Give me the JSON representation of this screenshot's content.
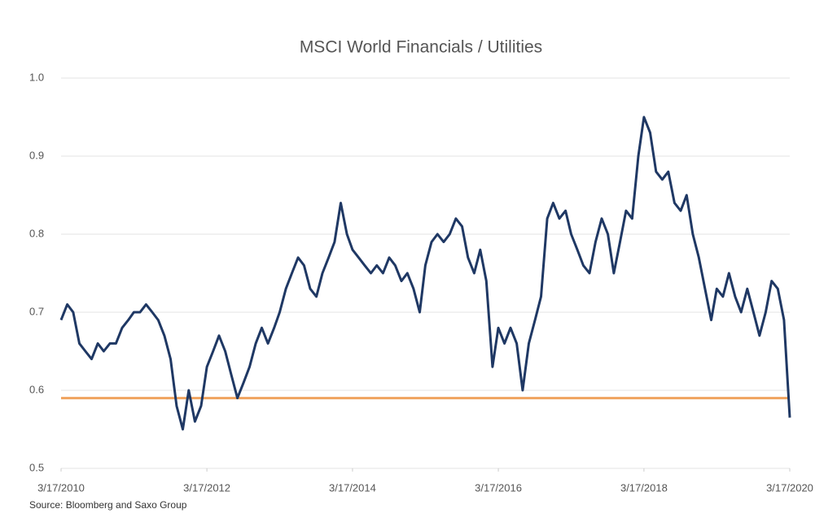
{
  "chart_data": {
    "type": "line",
    "title": "MSCI World Financials / Utilities",
    "source": "Source: Bloomberg and Saxo Group",
    "x": [
      "2010-03-17",
      "2010-04-17",
      "2010-05-17",
      "2010-06-17",
      "2010-07-17",
      "2010-08-17",
      "2010-09-17",
      "2010-10-17",
      "2010-11-17",
      "2010-12-17",
      "2011-01-17",
      "2011-02-17",
      "2011-03-17",
      "2011-04-17",
      "2011-05-17",
      "2011-06-17",
      "2011-07-17",
      "2011-08-17",
      "2011-09-17",
      "2011-10-17",
      "2011-11-17",
      "2011-12-17",
      "2012-01-17",
      "2012-02-17",
      "2012-03-17",
      "2012-04-17",
      "2012-05-17",
      "2012-06-17",
      "2012-07-17",
      "2012-08-17",
      "2012-09-17",
      "2012-10-17",
      "2012-11-17",
      "2012-12-17",
      "2013-01-17",
      "2013-02-17",
      "2013-03-17",
      "2013-04-17",
      "2013-05-17",
      "2013-06-17",
      "2013-07-17",
      "2013-08-17",
      "2013-09-17",
      "2013-10-17",
      "2013-11-17",
      "2013-12-17",
      "2014-01-17",
      "2014-02-17",
      "2014-03-17",
      "2014-04-17",
      "2014-05-17",
      "2014-06-17",
      "2014-07-17",
      "2014-08-17",
      "2014-09-17",
      "2014-10-17",
      "2014-11-17",
      "2014-12-17",
      "2015-01-17",
      "2015-02-17",
      "2015-03-17",
      "2015-04-17",
      "2015-05-17",
      "2015-06-17",
      "2015-07-17",
      "2015-08-17",
      "2015-09-17",
      "2015-10-17",
      "2015-11-17",
      "2015-12-17",
      "2016-01-17",
      "2016-02-17",
      "2016-03-17",
      "2016-04-17",
      "2016-05-17",
      "2016-06-17",
      "2016-07-17",
      "2016-08-17",
      "2016-09-17",
      "2016-10-17",
      "2016-11-17",
      "2016-12-17",
      "2017-01-17",
      "2017-02-17",
      "2017-03-17",
      "2017-04-17",
      "2017-05-17",
      "2017-06-17",
      "2017-07-17",
      "2017-08-17",
      "2017-09-17",
      "2017-10-17",
      "2017-11-17",
      "2017-12-17",
      "2018-01-17",
      "2018-02-17",
      "2018-03-17",
      "2018-04-17",
      "2018-05-17",
      "2018-06-17",
      "2018-07-17",
      "2018-08-17",
      "2018-09-17",
      "2018-10-17",
      "2018-11-17",
      "2018-12-17",
      "2019-01-17",
      "2019-02-17",
      "2019-03-17",
      "2019-04-17",
      "2019-05-17",
      "2019-06-17",
      "2019-07-17",
      "2019-08-17",
      "2019-09-17",
      "2019-10-17",
      "2019-11-17",
      "2019-12-17",
      "2020-01-17",
      "2020-02-17",
      "2020-03-17"
    ],
    "series": [
      {
        "name": "MSCI World Financials / Utilities",
        "color": "#1f3864",
        "values": [
          0.69,
          0.71,
          0.7,
          0.66,
          0.65,
          0.64,
          0.66,
          0.65,
          0.66,
          0.66,
          0.68,
          0.69,
          0.7,
          0.7,
          0.71,
          0.7,
          0.69,
          0.67,
          0.64,
          0.58,
          0.55,
          0.6,
          0.56,
          0.58,
          0.63,
          0.65,
          0.67,
          0.65,
          0.62,
          0.59,
          0.61,
          0.63,
          0.66,
          0.68,
          0.66,
          0.68,
          0.7,
          0.73,
          0.75,
          0.77,
          0.76,
          0.73,
          0.72,
          0.75,
          0.77,
          0.79,
          0.84,
          0.8,
          0.78,
          0.77,
          0.76,
          0.75,
          0.76,
          0.75,
          0.77,
          0.76,
          0.74,
          0.75,
          0.73,
          0.7,
          0.76,
          0.79,
          0.8,
          0.79,
          0.8,
          0.82,
          0.81,
          0.77,
          0.75,
          0.78,
          0.74,
          0.63,
          0.68,
          0.66,
          0.68,
          0.66,
          0.6,
          0.66,
          0.69,
          0.72,
          0.82,
          0.84,
          0.82,
          0.83,
          0.8,
          0.78,
          0.76,
          0.75,
          0.79,
          0.82,
          0.8,
          0.75,
          0.79,
          0.83,
          0.82,
          0.9,
          0.95,
          0.93,
          0.88,
          0.87,
          0.88,
          0.84,
          0.83,
          0.85,
          0.8,
          0.77,
          0.73,
          0.69,
          0.73,
          0.72,
          0.75,
          0.72,
          0.7,
          0.73,
          0.7,
          0.67,
          0.7,
          0.74,
          0.73,
          0.69,
          0.565
        ]
      }
    ],
    "reference_line": {
      "value": 0.59,
      "color": "#f0a35e"
    },
    "xlim": [
      "2010-03-17",
      "2020-03-17"
    ],
    "xticks": [
      {
        "value": "2010-03-17",
        "label": "3/17/2010"
      },
      {
        "value": "2012-03-17",
        "label": "3/17/2012"
      },
      {
        "value": "2014-03-17",
        "label": "3/17/2014"
      },
      {
        "value": "2016-03-17",
        "label": "3/17/2016"
      },
      {
        "value": "2018-03-17",
        "label": "3/17/2018"
      },
      {
        "value": "2020-03-17",
        "label": "3/17/2020"
      }
    ],
    "ylim": [
      0.5,
      1.0
    ],
    "yticks": [
      0.5,
      0.6,
      0.7,
      0.8,
      0.9,
      {
        "value": 1.0,
        "label": "1.0"
      }
    ],
    "grid": true
  }
}
